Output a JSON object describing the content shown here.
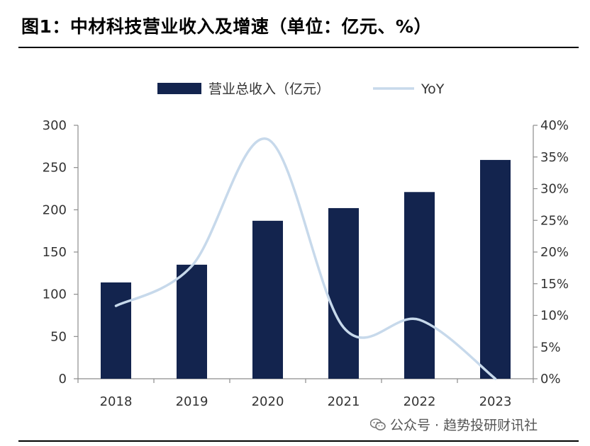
{
  "figure": {
    "title": "图1：中材科技营业收入及增速（单位：亿元、%）"
  },
  "watermark": {
    "text": "公众号 · 趋势投研财讯社",
    "icon": "wechat-icon"
  },
  "chart_data": {
    "type": "bar",
    "categories": [
      "2018",
      "2019",
      "2020",
      "2021",
      "2022",
      "2023"
    ],
    "series": [
      {
        "name": "营业总收入（亿元）",
        "type": "bar",
        "axis": "left",
        "values": [
          114,
          135,
          187,
          202,
          221,
          259
        ],
        "color": "#13244e"
      },
      {
        "name": "YoY",
        "type": "line",
        "axis": "right",
        "smooth": true,
        "values": [
          11.5,
          17.8,
          37.8,
          8.1,
          9.3,
          0.0
        ],
        "color": "#c7d9eb"
      }
    ],
    "y_left": {
      "min": 0,
      "max": 300,
      "ticks": [
        0,
        50,
        100,
        150,
        200,
        250,
        300
      ]
    },
    "y_right": {
      "min": 0,
      "max": 40,
      "ticks": [
        "0%",
        "5%",
        "10%",
        "15%",
        "20%",
        "25%",
        "30%",
        "35%",
        "40%"
      ]
    },
    "legend": {
      "position": "top-center"
    },
    "grid": false
  }
}
